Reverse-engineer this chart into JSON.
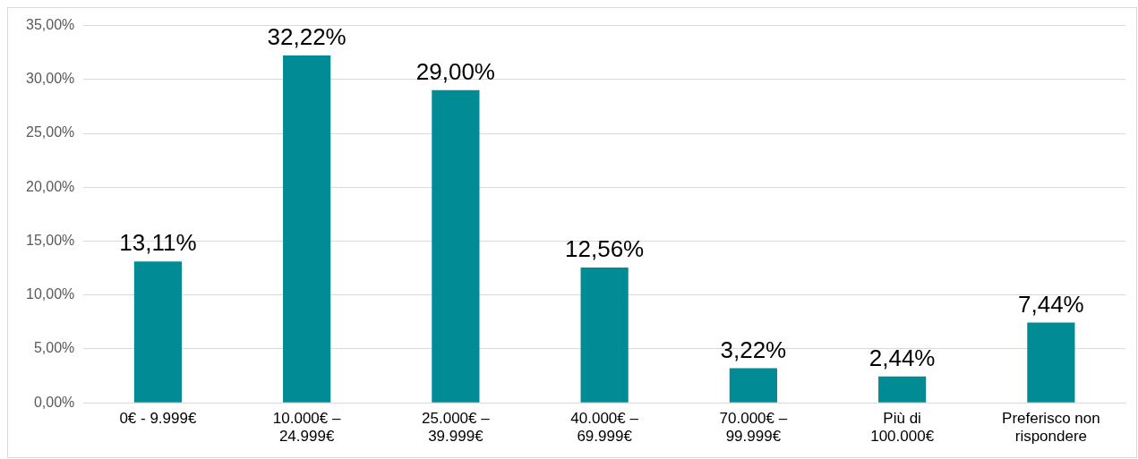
{
  "chart_data": {
    "type": "bar",
    "categories": [
      "0€ - 9.999€",
      "10.000€ –\n24.999€",
      "25.000€ –\n39.999€",
      "40.000€ –\n69.999€",
      "70.000€ –\n99.999€",
      "Più di\n100.000€",
      "Preferisco non\nrispondere"
    ],
    "values": [
      13.11,
      32.22,
      29.0,
      12.56,
      3.22,
      2.44,
      7.44
    ],
    "value_labels": [
      "13,11%",
      "32,22%",
      "29,00%",
      "12,56%",
      "3,22%",
      "2,44%",
      "7,44%"
    ],
    "color": "#008b95",
    "ylim": [
      0,
      35
    ],
    "yticks": [
      {
        "value": 0,
        "label": "0,00%"
      },
      {
        "value": 5,
        "label": "5,00%"
      },
      {
        "value": 10,
        "label": "10,00%"
      },
      {
        "value": 15,
        "label": "15,00%"
      },
      {
        "value": 20,
        "label": "20,00%"
      },
      {
        "value": 25,
        "label": "25,00%"
      },
      {
        "value": 30,
        "label": "30,00%"
      },
      {
        "value": 35,
        "label": "35,00%"
      }
    ],
    "grid": "y",
    "legend": false
  }
}
